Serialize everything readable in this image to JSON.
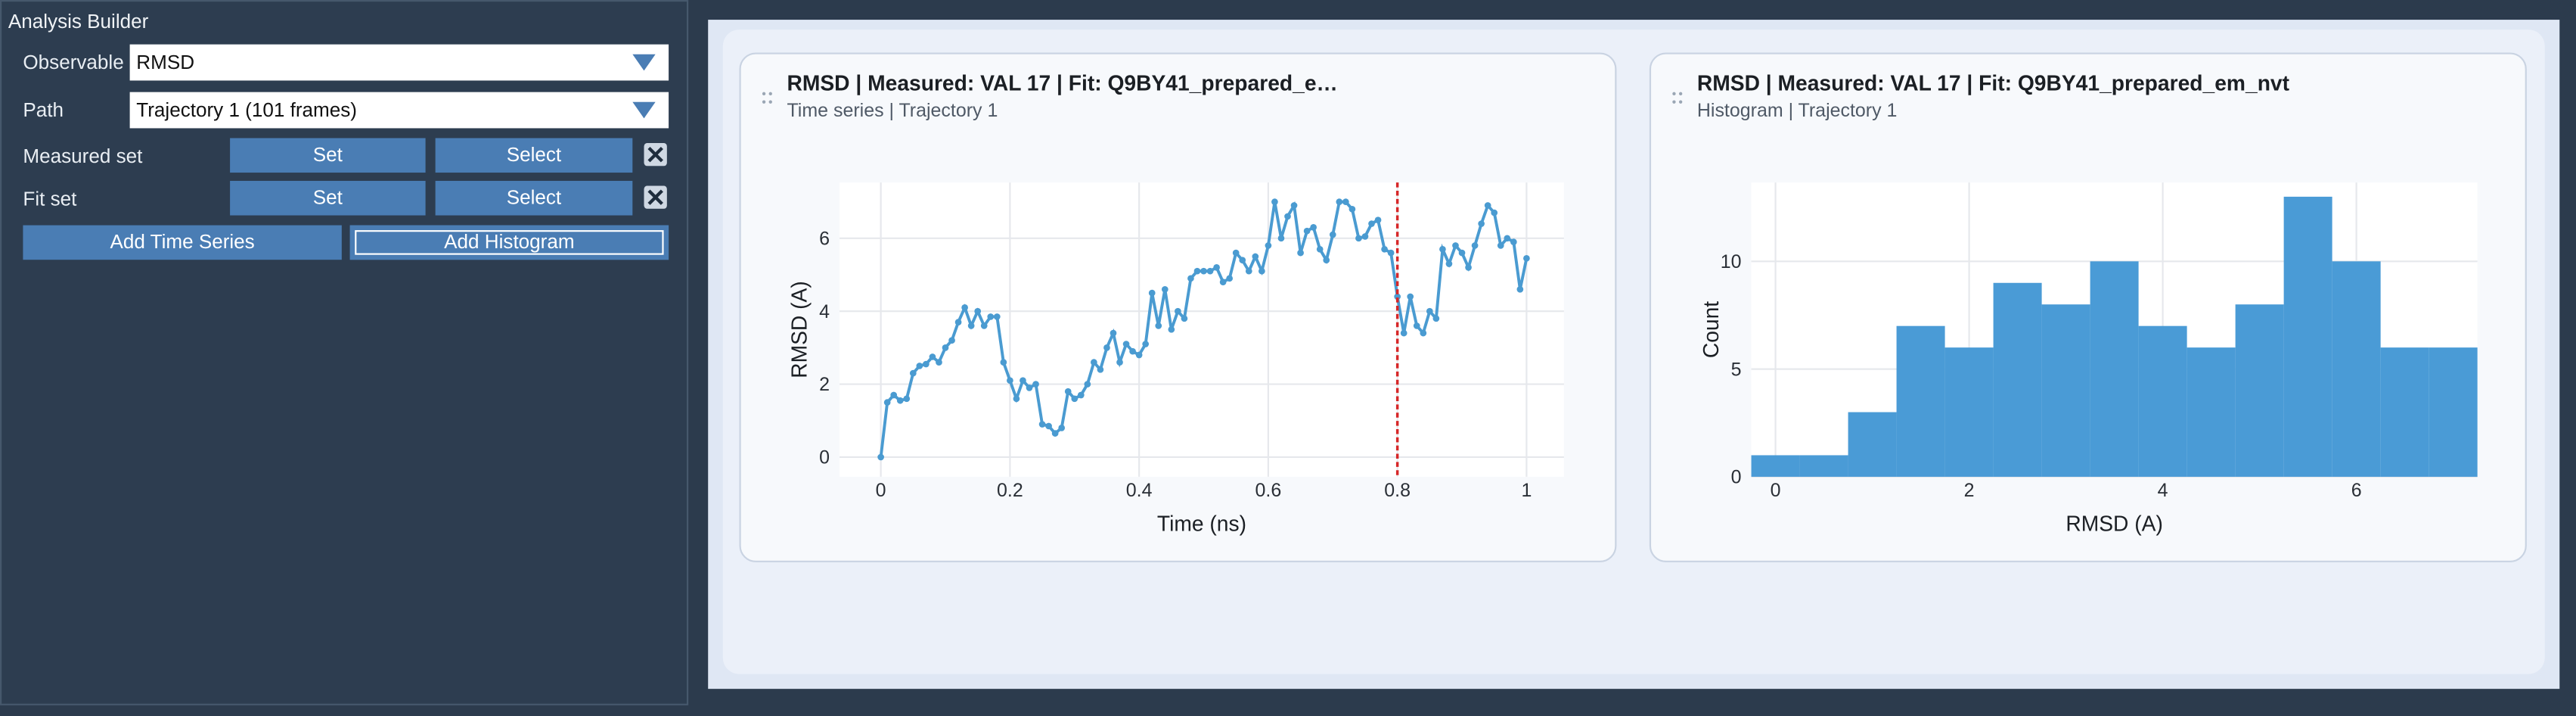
{
  "sidebar": {
    "title": "Analysis Builder",
    "fields": [
      {
        "label": "Observable",
        "value": "RMSD"
      },
      {
        "label": "Path",
        "value": "Trajectory 1 (101 frames)"
      }
    ],
    "sets": [
      {
        "label": "Measured set",
        "buttons": [
          "Set",
          "Select"
        ]
      },
      {
        "label": "Fit set",
        "buttons": [
          "Set",
          "Select"
        ]
      }
    ],
    "actions": [
      "Add Time Series",
      "Add Histogram"
    ]
  },
  "chart_data": [
    {
      "type": "line",
      "title": "RMSD | Measured: VAL 17 | Fit: Q9BY41_prepared_e…",
      "subtitle": "Time series | Trajectory 1",
      "xlabel": "Time (ns)",
      "ylabel": "RMSD (A)",
      "color": "#4a9bd1",
      "grid": true,
      "vline": 0.8,
      "vline_color": "#d62728",
      "x": [
        0,
        0.01,
        0.02,
        0.03,
        0.04,
        0.05,
        0.06,
        0.07,
        0.08,
        0.09,
        0.1,
        0.11,
        0.12,
        0.13,
        0.14,
        0.15,
        0.16,
        0.17,
        0.18,
        0.19,
        0.2,
        0.21,
        0.22,
        0.23,
        0.24,
        0.25,
        0.26,
        0.27,
        0.28,
        0.29,
        0.3,
        0.31,
        0.32,
        0.33,
        0.34,
        0.35,
        0.36,
        0.37,
        0.38,
        0.39,
        0.4,
        0.41,
        0.42,
        0.43,
        0.44,
        0.45,
        0.46,
        0.47,
        0.48,
        0.49,
        0.5,
        0.51,
        0.52,
        0.53,
        0.54,
        0.55,
        0.56,
        0.57,
        0.58,
        0.59,
        0.6,
        0.61,
        0.62,
        0.63,
        0.64,
        0.65,
        0.66,
        0.67,
        0.68,
        0.69,
        0.7,
        0.71,
        0.72,
        0.73,
        0.74,
        0.75,
        0.76,
        0.77,
        0.78,
        0.79,
        0.8,
        0.81,
        0.82,
        0.83,
        0.84,
        0.85,
        0.86,
        0.87,
        0.88,
        0.89,
        0.9,
        0.91,
        0.92,
        0.93,
        0.94,
        0.95,
        0.96,
        0.97,
        0.98,
        0.99,
        1
      ],
      "values": [
        0,
        1.5,
        1.7,
        1.55,
        1.6,
        2.3,
        2.5,
        2.55,
        2.75,
        2.6,
        3.0,
        3.2,
        3.7,
        4.1,
        3.6,
        4.0,
        3.6,
        3.85,
        3.85,
        2.6,
        2.1,
        1.6,
        2.1,
        1.9,
        2.0,
        0.9,
        0.85,
        0.65,
        0.8,
        1.8,
        1.6,
        1.7,
        2.0,
        2.6,
        2.4,
        3.0,
        3.4,
        2.6,
        3.1,
        2.9,
        2.8,
        3.1,
        4.5,
        3.6,
        4.6,
        3.5,
        4.0,
        3.8,
        4.9,
        5.1,
        5.1,
        5.1,
        5.2,
        4.8,
        4.9,
        5.6,
        5.4,
        5.1,
        5.5,
        5.1,
        5.8,
        7.0,
        6.0,
        6.6,
        6.9,
        5.6,
        6.2,
        6.3,
        5.7,
        5.4,
        6.1,
        7.0,
        7.0,
        6.8,
        6.0,
        6.05,
        6.4,
        6.5,
        5.7,
        5.6,
        4.4,
        3.4,
        4.4,
        3.6,
        3.4,
        4.0,
        3.8,
        5.7,
        5.3,
        5.8,
        5.6,
        5.2,
        5.8,
        6.4,
        6.9,
        6.7,
        5.8,
        6.0,
        5.9,
        4.6,
        5.45
      ],
      "xlim": [
        -0.064,
        1.058
      ],
      "ylim": [
        -0.54,
        7.53
      ],
      "xticks": [
        0,
        0.2,
        0.4,
        0.6,
        0.8,
        1
      ],
      "yticks": [
        0,
        2,
        4,
        6
      ]
    },
    {
      "type": "histogram",
      "title": "RMSD | Measured: VAL 17 | Fit: Q9BY41_prepared_em_nvt",
      "subtitle": "Histogram | Trajectory 1",
      "xlabel": "RMSD (A)",
      "ylabel": "Count",
      "color": "#4a9bd6",
      "grid": true,
      "bins": [
        -0.25,
        0.25,
        0.75,
        1.25,
        1.75,
        2.25,
        2.75,
        3.25,
        3.75,
        4.25,
        4.75,
        5.25,
        5.75,
        6.25,
        6.75,
        7.25
      ],
      "values": [
        1,
        1,
        3,
        7,
        6,
        9,
        8,
        10,
        7,
        6,
        8,
        13,
        10,
        6,
        6
      ],
      "xlim": [
        -0.25,
        7.25
      ],
      "ylim": [
        0,
        13.66
      ],
      "xticks": [
        0,
        2,
        4,
        6
      ],
      "yticks": [
        0,
        5,
        10
      ]
    }
  ]
}
